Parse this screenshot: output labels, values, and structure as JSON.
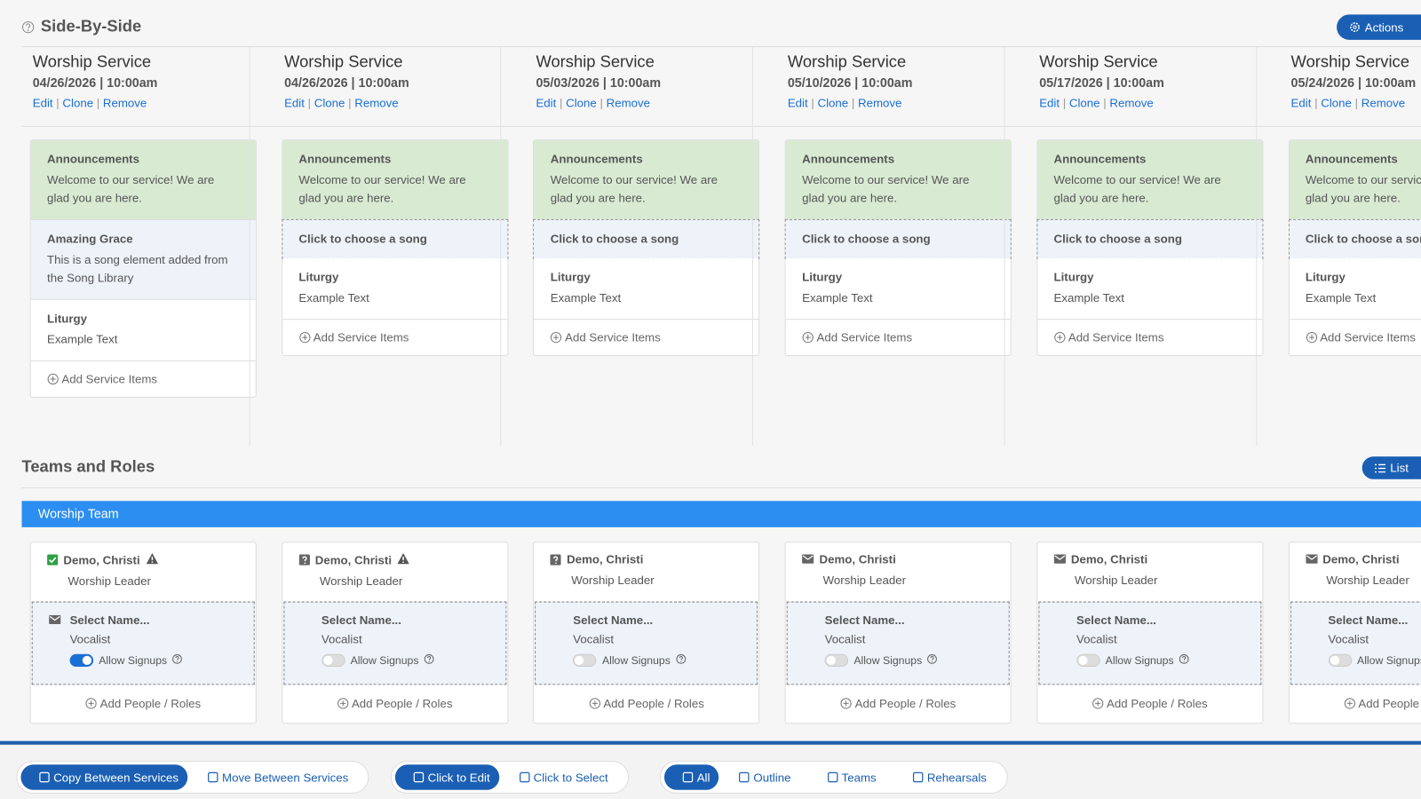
{
  "header": {
    "title": "Side-By-Side",
    "actions": "Actions"
  },
  "services": [
    {
      "title": "Worship Service",
      "datetime": "04/26/2026 | 10:00am",
      "links": [
        "Edit",
        "Clone",
        "Remove"
      ],
      "items": [
        {
          "title": "Announcements",
          "text": "Welcome to our service! We are glad you are here.",
          "color": "#d9ead3"
        },
        {
          "title": "Amazing Grace",
          "text": "This is a song element added from the Song Library",
          "color": "#eef3fa"
        },
        {
          "title": "Liturgy",
          "text": "Example Text",
          "color": "#ffffff"
        }
      ],
      "add": "Add Service Items"
    },
    {
      "title": "Worship Service",
      "datetime": "04/26/2026 | 10:00am",
      "links": [
        "Edit",
        "Clone",
        "Remove"
      ],
      "items": [
        {
          "title": "Announcements",
          "text": "Welcome to our service! We are glad you are here.",
          "color": "#d9ead3"
        },
        {
          "title": "Click to choose a song",
          "color": "#eef3fa",
          "dashed": true
        },
        {
          "title": "Liturgy",
          "text": "Example Text",
          "color": "#ffffff"
        }
      ],
      "add": "Add Service Items"
    },
    {
      "title": "Worship Service",
      "datetime": "05/03/2026 | 10:00am",
      "links": [
        "Edit",
        "Clone",
        "Remove"
      ],
      "items": [
        {
          "title": "Announcements",
          "text": "Welcome to our service! We are glad you are here.",
          "color": "#d9ead3"
        },
        {
          "title": "Click to choose a song",
          "color": "#eef3fa",
          "dashed": true
        },
        {
          "title": "Liturgy",
          "text": "Example Text",
          "color": "#ffffff"
        }
      ],
      "add": "Add Service Items"
    },
    {
      "title": "Worship Service",
      "datetime": "05/10/2026 | 10:00am",
      "links": [
        "Edit",
        "Clone",
        "Remove"
      ],
      "items": [
        {
          "title": "Announcements",
          "text": "Welcome to our service! We are glad you are here.",
          "color": "#d9ead3"
        },
        {
          "title": "Click to choose a song",
          "color": "#eef3fa",
          "dashed": true
        },
        {
          "title": "Liturgy",
          "text": "Example Text",
          "color": "#ffffff"
        }
      ],
      "add": "Add Service Items"
    },
    {
      "title": "Worship Service",
      "datetime": "05/17/2026 | 10:00am",
      "links": [
        "Edit",
        "Clone",
        "Remove"
      ],
      "items": [
        {
          "title": "Announcements",
          "text": "Welcome to our service! We are glad you are here.",
          "color": "#d9ead3"
        },
        {
          "title": "Click to choose a song",
          "color": "#eef3fa",
          "dashed": true
        },
        {
          "title": "Liturgy",
          "text": "Example Text",
          "color": "#ffffff"
        }
      ],
      "add": "Add Service Items"
    },
    {
      "title": "Worship Service",
      "datetime": "05/24/2026 | 10:00am",
      "links": [
        "Edit",
        "Clone",
        "Remove"
      ],
      "items": [
        {
          "title": "Announcements",
          "text": "Welcome to our service! We are glad you are here.",
          "color": "#d9ead3"
        },
        {
          "title": "Click to choose a song",
          "color": "#eef3fa",
          "dashed": true
        },
        {
          "title": "Liturgy",
          "text": "Example Text",
          "color": "#ffffff"
        }
      ],
      "add": "Add Service Items"
    }
  ],
  "teams": {
    "title": "Teams and Roles",
    "list_button": "List",
    "team": "Worship Team",
    "columns": [
      {
        "person": "Demo, Christi",
        "icon": "check",
        "warning": true,
        "role": "Worship Leader",
        "slot": "Select Name...",
        "slot_icon": true,
        "slot_role": "Vocalist",
        "toggle": "Allow Signups",
        "on": true,
        "add": "Add People / Roles"
      },
      {
        "person": "Demo, Christi",
        "icon": "question",
        "warning": true,
        "role": "Worship Leader",
        "slot": "Select Name...",
        "slot_icon": false,
        "slot_role": "Vocalist",
        "toggle": "Allow Signups",
        "on": false,
        "add": "Add People / Roles"
      },
      {
        "person": "Demo, Christi",
        "icon": "question",
        "warning": false,
        "role": "Worship Leader",
        "slot": "Select Name...",
        "slot_icon": false,
        "slot_role": "Vocalist",
        "toggle": "Allow Signups",
        "on": false,
        "add": "Add People / Roles"
      },
      {
        "person": "Demo, Christi",
        "icon": "mail",
        "warning": false,
        "role": "Worship Leader",
        "slot": "Select Name...",
        "slot_icon": false,
        "slot_role": "Vocalist",
        "toggle": "Allow Signups",
        "on": false,
        "add": "Add People / Roles"
      },
      {
        "person": "Demo, Christi",
        "icon": "mail",
        "warning": false,
        "role": "Worship Leader",
        "slot": "Select Name...",
        "slot_icon": false,
        "slot_role": "Vocalist",
        "toggle": "Allow Signups",
        "on": false,
        "add": "Add People / Roles"
      },
      {
        "person": "Demo, Christi",
        "icon": "mail",
        "warning": false,
        "role": "Worship Leader",
        "slot": "Select Name...",
        "slot_icon": false,
        "slot_role": "Vocalist",
        "toggle": "Allow Signups",
        "on": false,
        "add": "Add People / Roles"
      }
    ]
  },
  "toolbar": [
    [
      {
        "label": "Copy Between Services",
        "active": true
      },
      {
        "label": "Move Between Services",
        "active": false
      }
    ],
    [
      {
        "label": "Click to Edit",
        "active": true
      },
      {
        "label": "Click to Select",
        "active": false
      }
    ],
    [
      {
        "label": "All",
        "active": true
      },
      {
        "label": "Outline",
        "active": false
      },
      {
        "label": "Teams",
        "active": false
      },
      {
        "label": "Rehearsals",
        "active": false
      }
    ]
  ]
}
